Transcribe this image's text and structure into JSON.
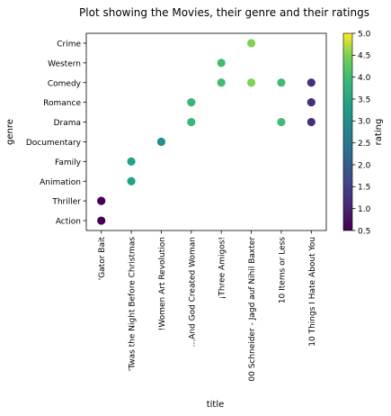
{
  "chart_data": {
    "type": "scatter",
    "title": "Plot showing the Movies, their genre and their ratings",
    "xlabel": "title",
    "ylabel": "genre",
    "x_categories": [
      "'Gator Bait",
      "'Twas the Night Before Christmas",
      "!Women Art Revolution",
      "...And God Created Woman",
      "¡Three Amigos!",
      "00 Schneider - Jagd auf Nihil Baxter",
      "10 Items or Less",
      "10 Things I Hate About You"
    ],
    "y_categories": [
      "Action",
      "Thriller",
      "Animation",
      "Family",
      "Documentary",
      "Drama",
      "Romance",
      "Comedy",
      "Western",
      "Crime"
    ],
    "points": [
      {
        "x": "'Gator Bait",
        "y": "Action",
        "rating": 0.5
      },
      {
        "x": "'Gator Bait",
        "y": "Thriller",
        "rating": 0.5
      },
      {
        "x": "'Twas the Night Before Christmas",
        "y": "Animation",
        "rating": 3.4
      },
      {
        "x": "'Twas the Night Before Christmas",
        "y": "Family",
        "rating": 3.4
      },
      {
        "x": "!Women Art Revolution",
        "y": "Documentary",
        "rating": 3.0
      },
      {
        "x": "...And God Created Woman",
        "y": "Drama",
        "rating": 3.9
      },
      {
        "x": "...And God Created Woman",
        "y": "Romance",
        "rating": 3.9
      },
      {
        "x": "¡Three Amigos!",
        "y": "Comedy",
        "rating": 4.0
      },
      {
        "x": "¡Three Amigos!",
        "y": "Western",
        "rating": 4.0
      },
      {
        "x": "00 Schneider - Jagd auf Nihil Baxter",
        "y": "Comedy",
        "rating": 4.5
      },
      {
        "x": "00 Schneider - Jagd auf Nihil Baxter",
        "y": "Crime",
        "rating": 4.5
      },
      {
        "x": "10 Items or Less",
        "y": "Comedy",
        "rating": 4.0
      },
      {
        "x": "10 Items or Less",
        "y": "Drama",
        "rating": 4.0
      },
      {
        "x": "10 Things I Hate About You",
        "y": "Comedy",
        "rating": 1.2
      },
      {
        "x": "10 Things I Hate About You",
        "y": "Drama",
        "rating": 1.2
      },
      {
        "x": "10 Things I Hate About You",
        "y": "Romance",
        "rating": 1.2
      }
    ],
    "colorbar": {
      "label": "rating",
      "range": [
        0.5,
        5.0
      ],
      "ticks": [
        "0.5",
        "1.0",
        "1.5",
        "2.0",
        "2.5",
        "3.0",
        "3.5",
        "4.0",
        "4.5",
        "5.0"
      ],
      "colormap": "viridis"
    },
    "grid": false,
    "legend": "none"
  }
}
